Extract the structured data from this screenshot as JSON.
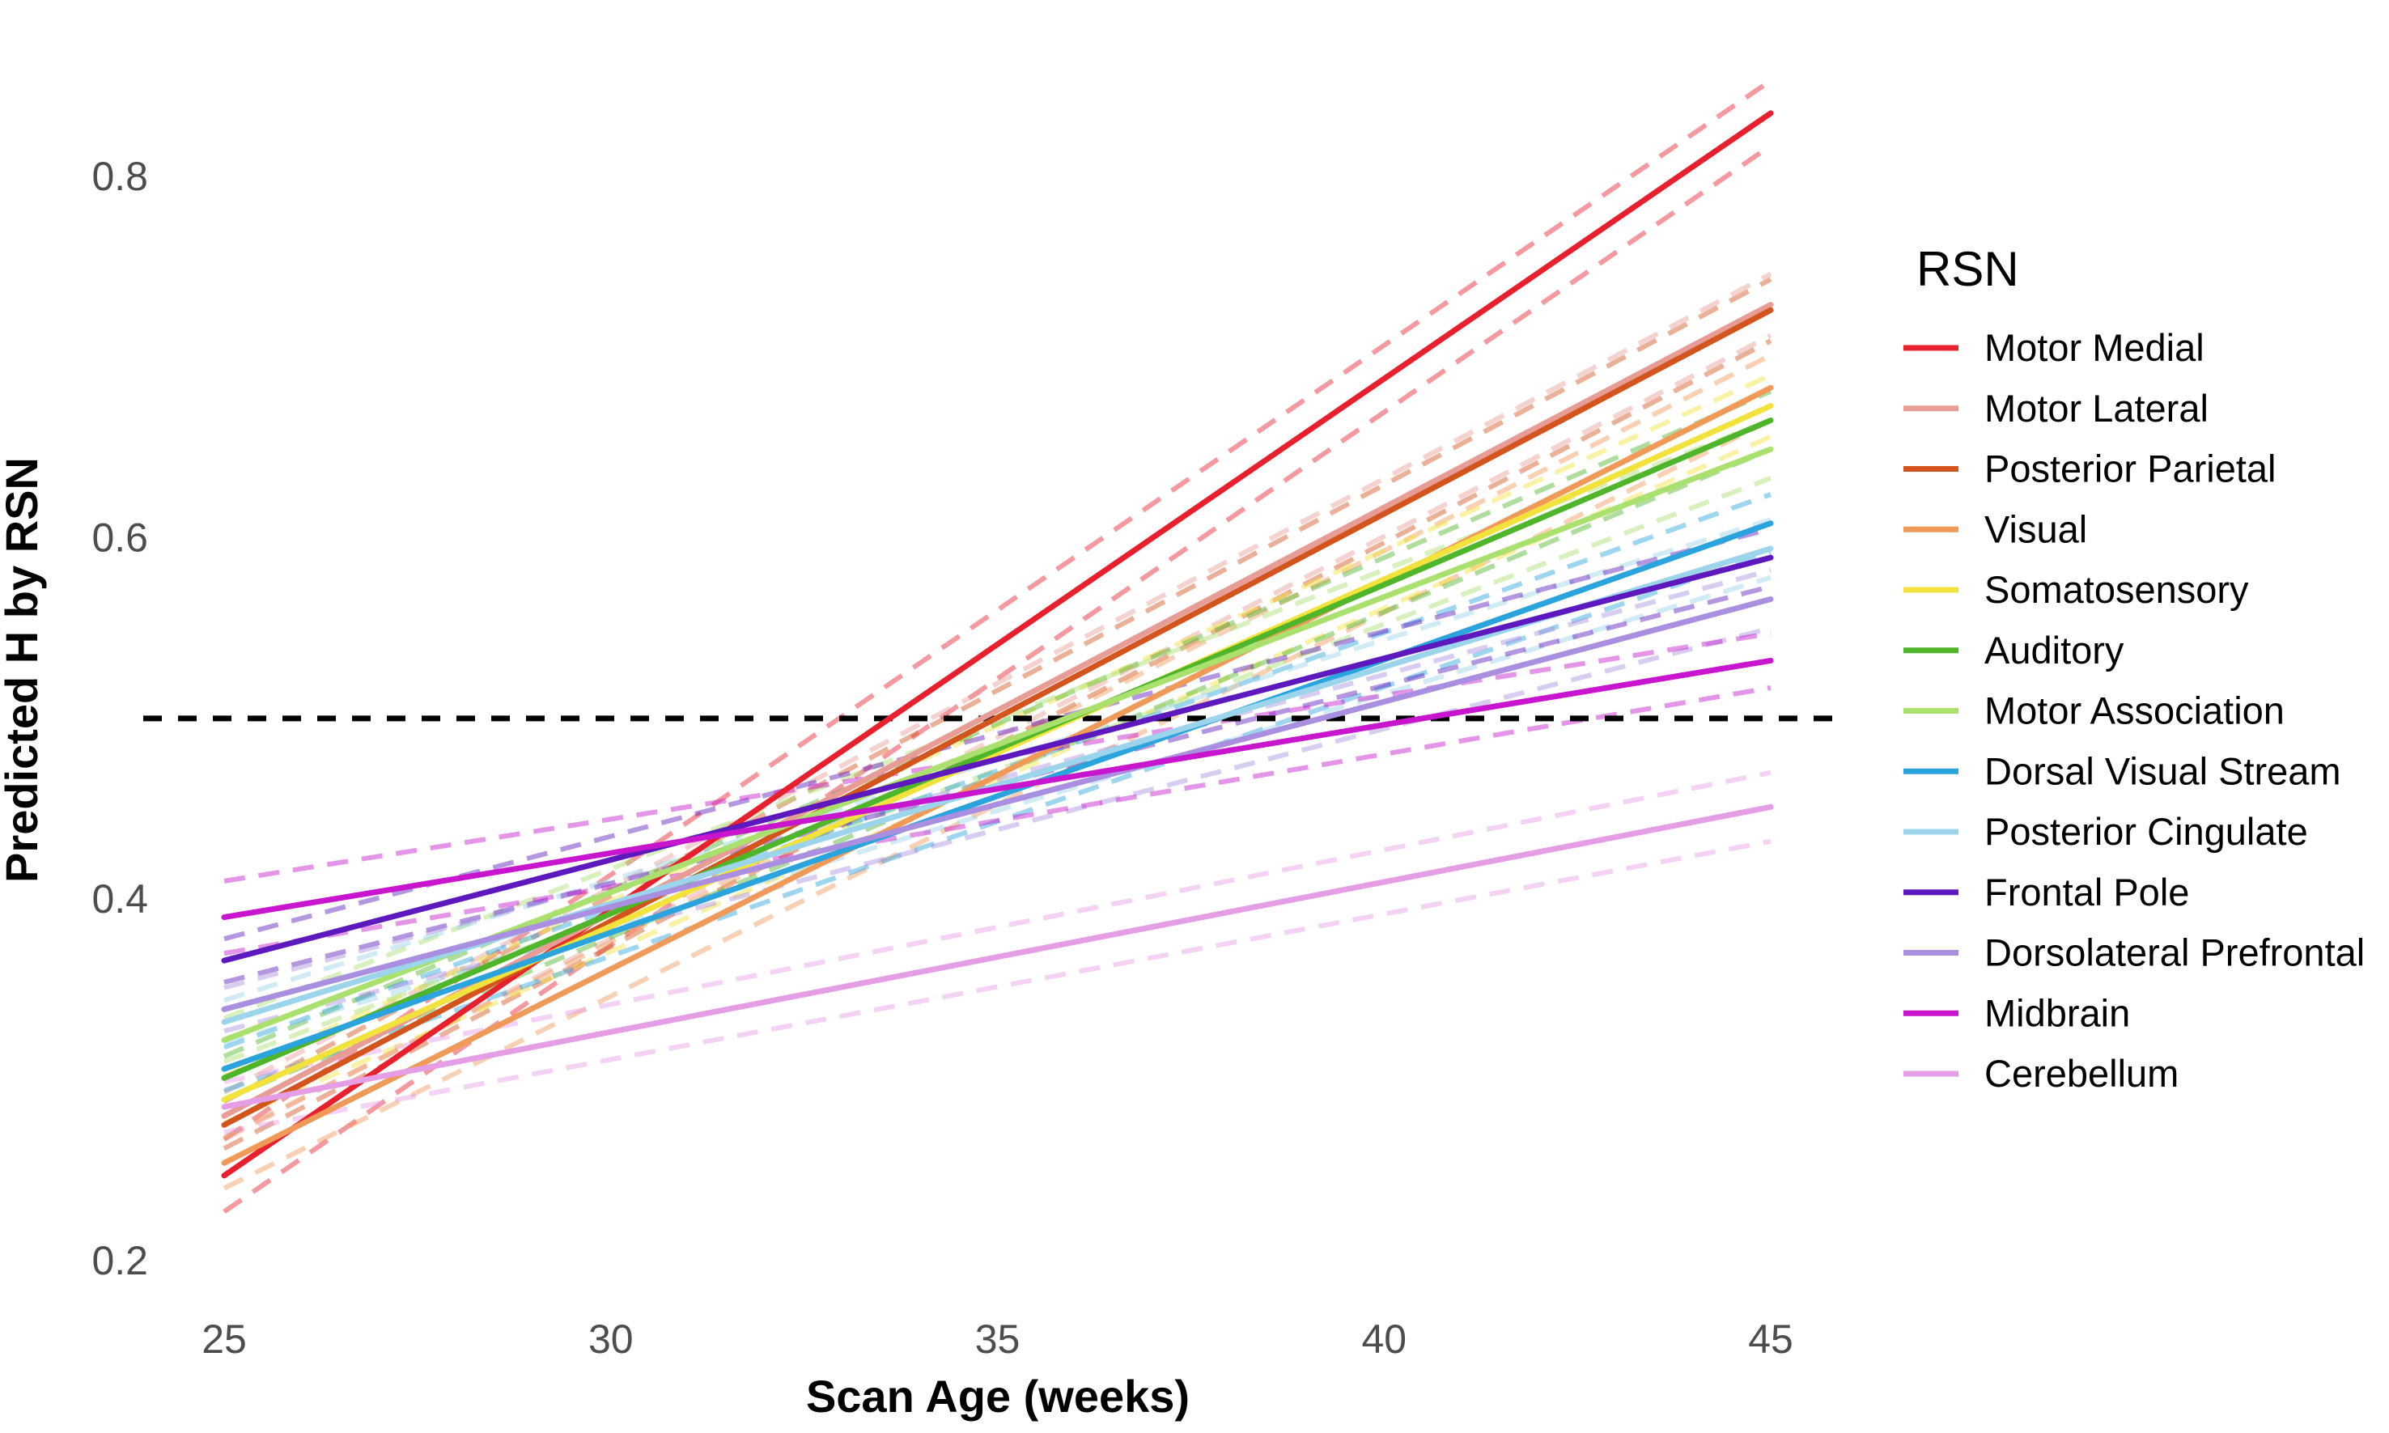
{
  "figure": {
    "background": "#ffffff",
    "tick_color": "#4d4d4d",
    "text_color": "#000000"
  },
  "x_axis": {
    "title": "Scan Age (weeks)",
    "ticks": [
      {
        "label": "25",
        "value": 25
      },
      {
        "label": "30",
        "value": 30
      },
      {
        "label": "35",
        "value": 35
      },
      {
        "label": "40",
        "value": 40
      },
      {
        "label": "45",
        "value": 45
      }
    ]
  },
  "y_axis": {
    "title": "Predicted H by RSN",
    "ticks": [
      {
        "label": "0.8",
        "value": 0.8
      },
      {
        "label": "0.6",
        "value": 0.6
      },
      {
        "label": "0.4",
        "value": 0.4
      },
      {
        "label": "0.2",
        "value": 0.2
      }
    ]
  },
  "legend": {
    "title": "RSN"
  },
  "chart_data": {
    "type": "line",
    "x": [
      25,
      45
    ],
    "xlabel": "Scan Age (weeks)",
    "ylabel": "Predicted H by RSN",
    "xlim": [
      25,
      45
    ],
    "ylim": [
      0.2,
      0.86
    ],
    "grid": false,
    "legend_position": "right",
    "legend_title": "RSN",
    "reference_hline": {
      "value": 0.5,
      "color": "#000000",
      "style": "dashed"
    },
    "ci_style": {
      "dashed": true,
      "opacity": 0.45
    },
    "series": [
      {
        "name": "Motor Medial",
        "color": "#E8202E",
        "values": [
          0.247,
          0.835
        ],
        "ci_halfwidth": [
          0.02,
          0.018
        ]
      },
      {
        "name": "Motor Lateral",
        "color": "#E79C96",
        "values": [
          0.28,
          0.729
        ],
        "ci_halfwidth": [
          0.013,
          0.017
        ]
      },
      {
        "name": "Posterior Parietal",
        "color": "#D3551D",
        "values": [
          0.275,
          0.726
        ],
        "ci_halfwidth": [
          0.013,
          0.017
        ]
      },
      {
        "name": "Visual",
        "color": "#F09A5A",
        "values": [
          0.254,
          0.683
        ],
        "ci_halfwidth": [
          0.014,
          0.018
        ]
      },
      {
        "name": "Somatosensory",
        "color": "#F2E33C",
        "values": [
          0.289,
          0.673
        ],
        "ci_halfwidth": [
          0.013,
          0.017
        ]
      },
      {
        "name": "Auditory",
        "color": "#4FB52A",
        "values": [
          0.301,
          0.665
        ],
        "ci_halfwidth": [
          0.012,
          0.016
        ]
      },
      {
        "name": "Motor Association",
        "color": "#A9E06E",
        "values": [
          0.322,
          0.649
        ],
        "ci_halfwidth": [
          0.012,
          0.016
        ]
      },
      {
        "name": "Dorsal Visual Stream",
        "color": "#2BA3DC",
        "values": [
          0.306,
          0.608
        ],
        "ci_halfwidth": [
          0.012,
          0.016
        ]
      },
      {
        "name": "Posterior Cingulate",
        "color": "#9BD4EB",
        "values": [
          0.332,
          0.594
        ],
        "ci_halfwidth": [
          0.012,
          0.016
        ]
      },
      {
        "name": "Frontal Pole",
        "color": "#5D18BE",
        "values": [
          0.366,
          0.589
        ],
        "ci_halfwidth": [
          0.012,
          0.016
        ]
      },
      {
        "name": "Dorsolateral Prefrontal",
        "color": "#AA8FE0",
        "values": [
          0.339,
          0.566
        ],
        "ci_halfwidth": [
          0.012,
          0.016
        ]
      },
      {
        "name": "Midbrain",
        "color": "#C716CE",
        "values": [
          0.39,
          0.532
        ],
        "ci_halfwidth": [
          0.02,
          0.015
        ]
      },
      {
        "name": "Cerebellum",
        "color": "#E59DE5",
        "values": [
          0.285,
          0.451
        ],
        "ci_halfwidth": [
          0.014,
          0.019
        ]
      }
    ]
  }
}
